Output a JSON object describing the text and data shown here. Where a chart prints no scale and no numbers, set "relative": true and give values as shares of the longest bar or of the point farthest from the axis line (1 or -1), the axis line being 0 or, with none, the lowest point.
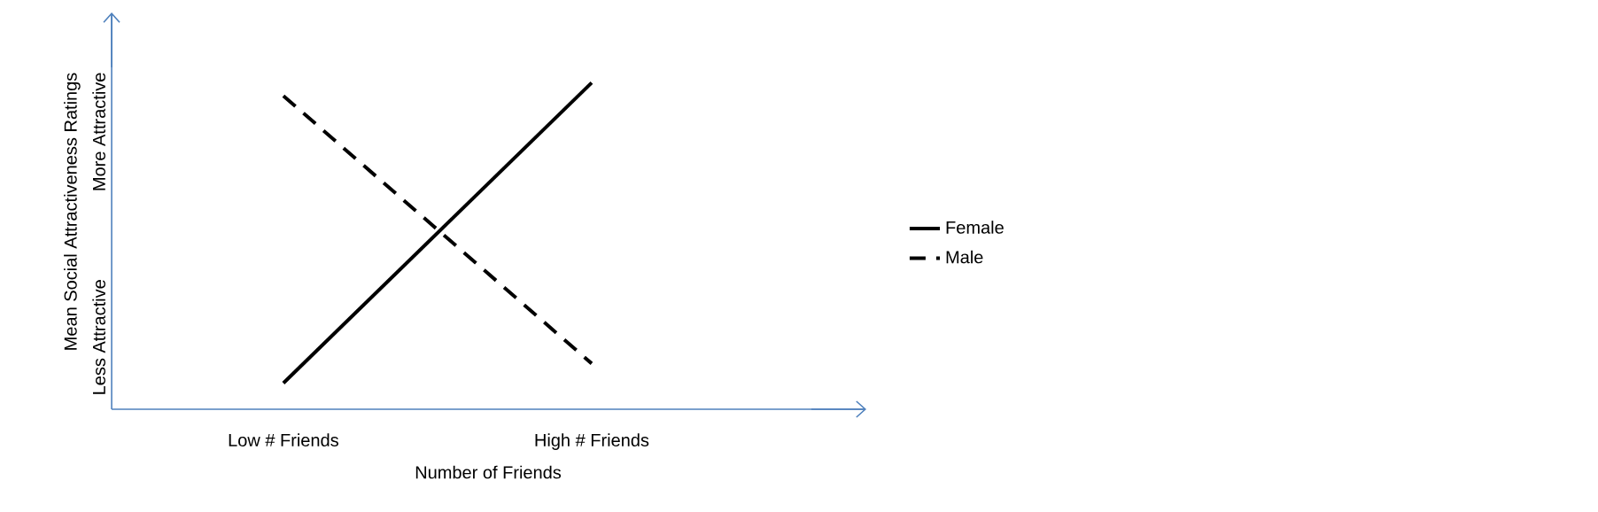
{
  "chart_data": {
    "type": "line",
    "xlabel": "Number of Friends",
    "ylabel": "Mean Social Attractiveness Ratings",
    "categories": [
      "Low # Friends",
      "High # Friends"
    ],
    "relative": true,
    "legend": "right",
    "series": [
      {
        "name": "Female",
        "color": "#000000",
        "line_style": "solid",
        "values": [
          0.08,
          1
        ]
      },
      {
        "name": "Male",
        "color": "#000000",
        "line_style": "dashed",
        "values": [
          0.96,
          0.14
        ]
      }
    ],
    "annotations": [
      "Less Attractive",
      "More Attractive"
    ]
  }
}
